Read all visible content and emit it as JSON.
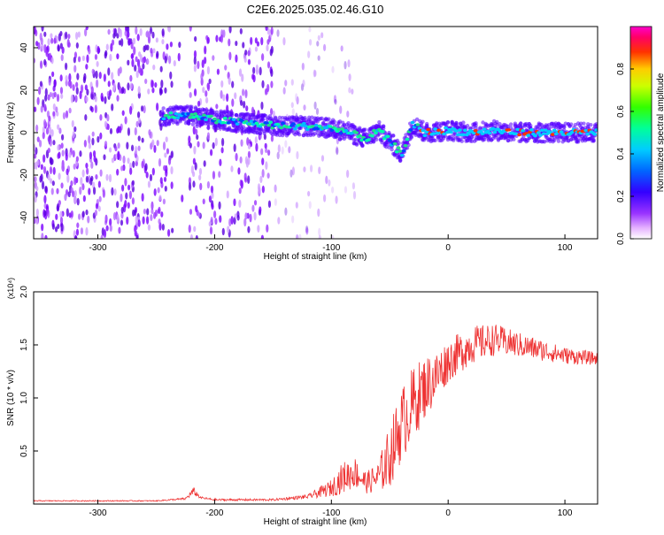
{
  "title": "C2E6.2025.035.02.46.G10",
  "chart_data": [
    {
      "type": "heatmap",
      "xlabel": "Height of straight line (km)",
      "ylabel": "Frequency (Hz)",
      "xlim": [
        -355,
        128
      ],
      "ylim": [
        -50,
        50
      ],
      "x_ticks": [
        -300,
        -200,
        -100,
        0,
        100
      ],
      "x_tick_labels": [
        "-300",
        "-200",
        "-100",
        "0",
        "100"
      ],
      "y_ticks": [
        -40,
        -20,
        0,
        20,
        40
      ],
      "y_tick_labels": [
        "-40",
        "-20",
        "0",
        "20",
        "40"
      ],
      "colorbar": {
        "label": "Normalized spectral amplitude",
        "range": [
          0,
          1
        ],
        "ticks": [
          0.0,
          0.2,
          0.4,
          0.6,
          0.8
        ],
        "tick_labels": [
          "0.0",
          "0.2",
          "0.4",
          "0.6",
          "0.8"
        ]
      },
      "ridge": {
        "x": [
          -240,
          -220,
          -200,
          -180,
          -160,
          -140,
          -120,
          -100,
          -90,
          -80,
          -70,
          -60,
          -50,
          -40,
          -30,
          -20,
          0,
          20,
          40,
          60,
          80,
          100,
          128
        ],
        "y": [
          8,
          8,
          6,
          5,
          4,
          3,
          3,
          2,
          1,
          -1,
          -3,
          1,
          -4,
          -10,
          4,
          0,
          1,
          0,
          1,
          0,
          0,
          0,
          0
        ]
      },
      "noise_region_x": [
        -355,
        -140
      ]
    },
    {
      "type": "line",
      "xlabel": "Height of straight line (km)",
      "ylabel": "SNR (10 * v/v)",
      "y_multiplier": "(x10⁴)",
      "xlim": [
        -355,
        128
      ],
      "ylim": [
        0,
        2.0
      ],
      "x_ticks": [
        -300,
        -200,
        -100,
        0,
        100
      ],
      "x_tick_labels": [
        "-300",
        "-200",
        "-100",
        "0",
        "100"
      ],
      "y_ticks": [
        0.5,
        1.0,
        1.5,
        2.0
      ],
      "y_tick_labels": [
        "0.5",
        "1.0",
        "1.5",
        "2.0"
      ],
      "series": [
        {
          "color": "#ee3333",
          "envelope_x": [
            -355,
            -250,
            -225,
            -218,
            -212,
            -200,
            -150,
            -120,
            -100,
            -90,
            -80,
            -70,
            -60,
            -50,
            -40,
            -30,
            -20,
            -10,
            0,
            20,
            40,
            60,
            80,
            100,
            128
          ],
          "envelope_y": [
            0.03,
            0.03,
            0.05,
            0.12,
            0.06,
            0.04,
            0.04,
            0.07,
            0.15,
            0.25,
            0.3,
            0.2,
            0.25,
            0.45,
            0.75,
            0.95,
            1.1,
            1.2,
            1.35,
            1.5,
            1.55,
            1.5,
            1.45,
            1.4,
            1.37
          ],
          "spread_y": [
            0.005,
            0.005,
            0.01,
            0.04,
            0.01,
            0.01,
            0.01,
            0.02,
            0.08,
            0.15,
            0.15,
            0.1,
            0.15,
            0.3,
            0.35,
            0.35,
            0.3,
            0.25,
            0.2,
            0.18,
            0.15,
            0.12,
            0.1,
            0.08,
            0.06
          ]
        }
      ]
    }
  ]
}
